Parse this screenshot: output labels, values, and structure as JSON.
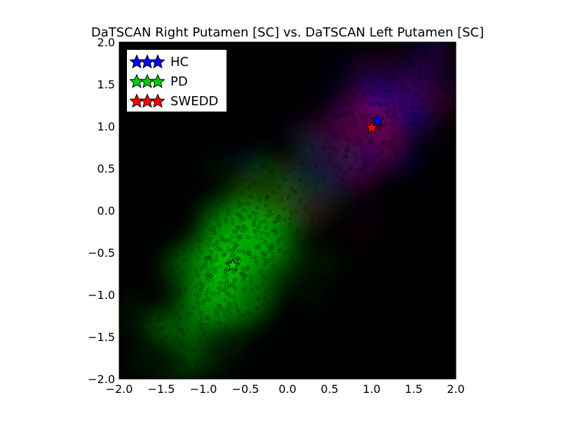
{
  "chart_data": {
    "type": "scatter",
    "title": "DaTSCAN Right Putamen [SC] vs. DaTSCAN Left Putamen [SC]",
    "xlabel": "",
    "ylabel": "",
    "xlim": [
      -2.0,
      2.0
    ],
    "ylim": [
      -2.0,
      2.0
    ],
    "x_ticks": [
      "−2.0",
      "−1.5",
      "−1.0",
      "−0.5",
      "0.0",
      "0.5",
      "1.0",
      "1.5",
      "2.0"
    ],
    "y_ticks": [
      "2.0",
      "1.5",
      "1.0",
      "0.5",
      "0.0",
      "−0.5",
      "−1.0",
      "−1.5",
      "−2.0"
    ],
    "x_tick_values": [
      -2.0,
      -1.5,
      -1.0,
      -0.5,
      0.0,
      0.5,
      1.0,
      1.5,
      2.0
    ],
    "y_tick_values": [
      2.0,
      1.5,
      1.0,
      0.5,
      0.0,
      -0.5,
      -1.0,
      -1.5,
      -2.0
    ],
    "legend_position": "top-left",
    "background_color": "#000000",
    "series": [
      {
        "name": "HC",
        "color": "#0000ff",
        "center": [
          1.07,
          1.07
        ],
        "spread": [
          0.45,
          0.45
        ]
      },
      {
        "name": "PD",
        "color": "#00cc00",
        "center": [
          -0.65,
          -0.65
        ],
        "spread": [
          0.42,
          0.5
        ]
      },
      {
        "name": "SWEDD",
        "color": "#ff0000",
        "center": [
          1.0,
          0.98
        ],
        "spread": [
          0.5,
          0.5
        ]
      }
    ]
  }
}
